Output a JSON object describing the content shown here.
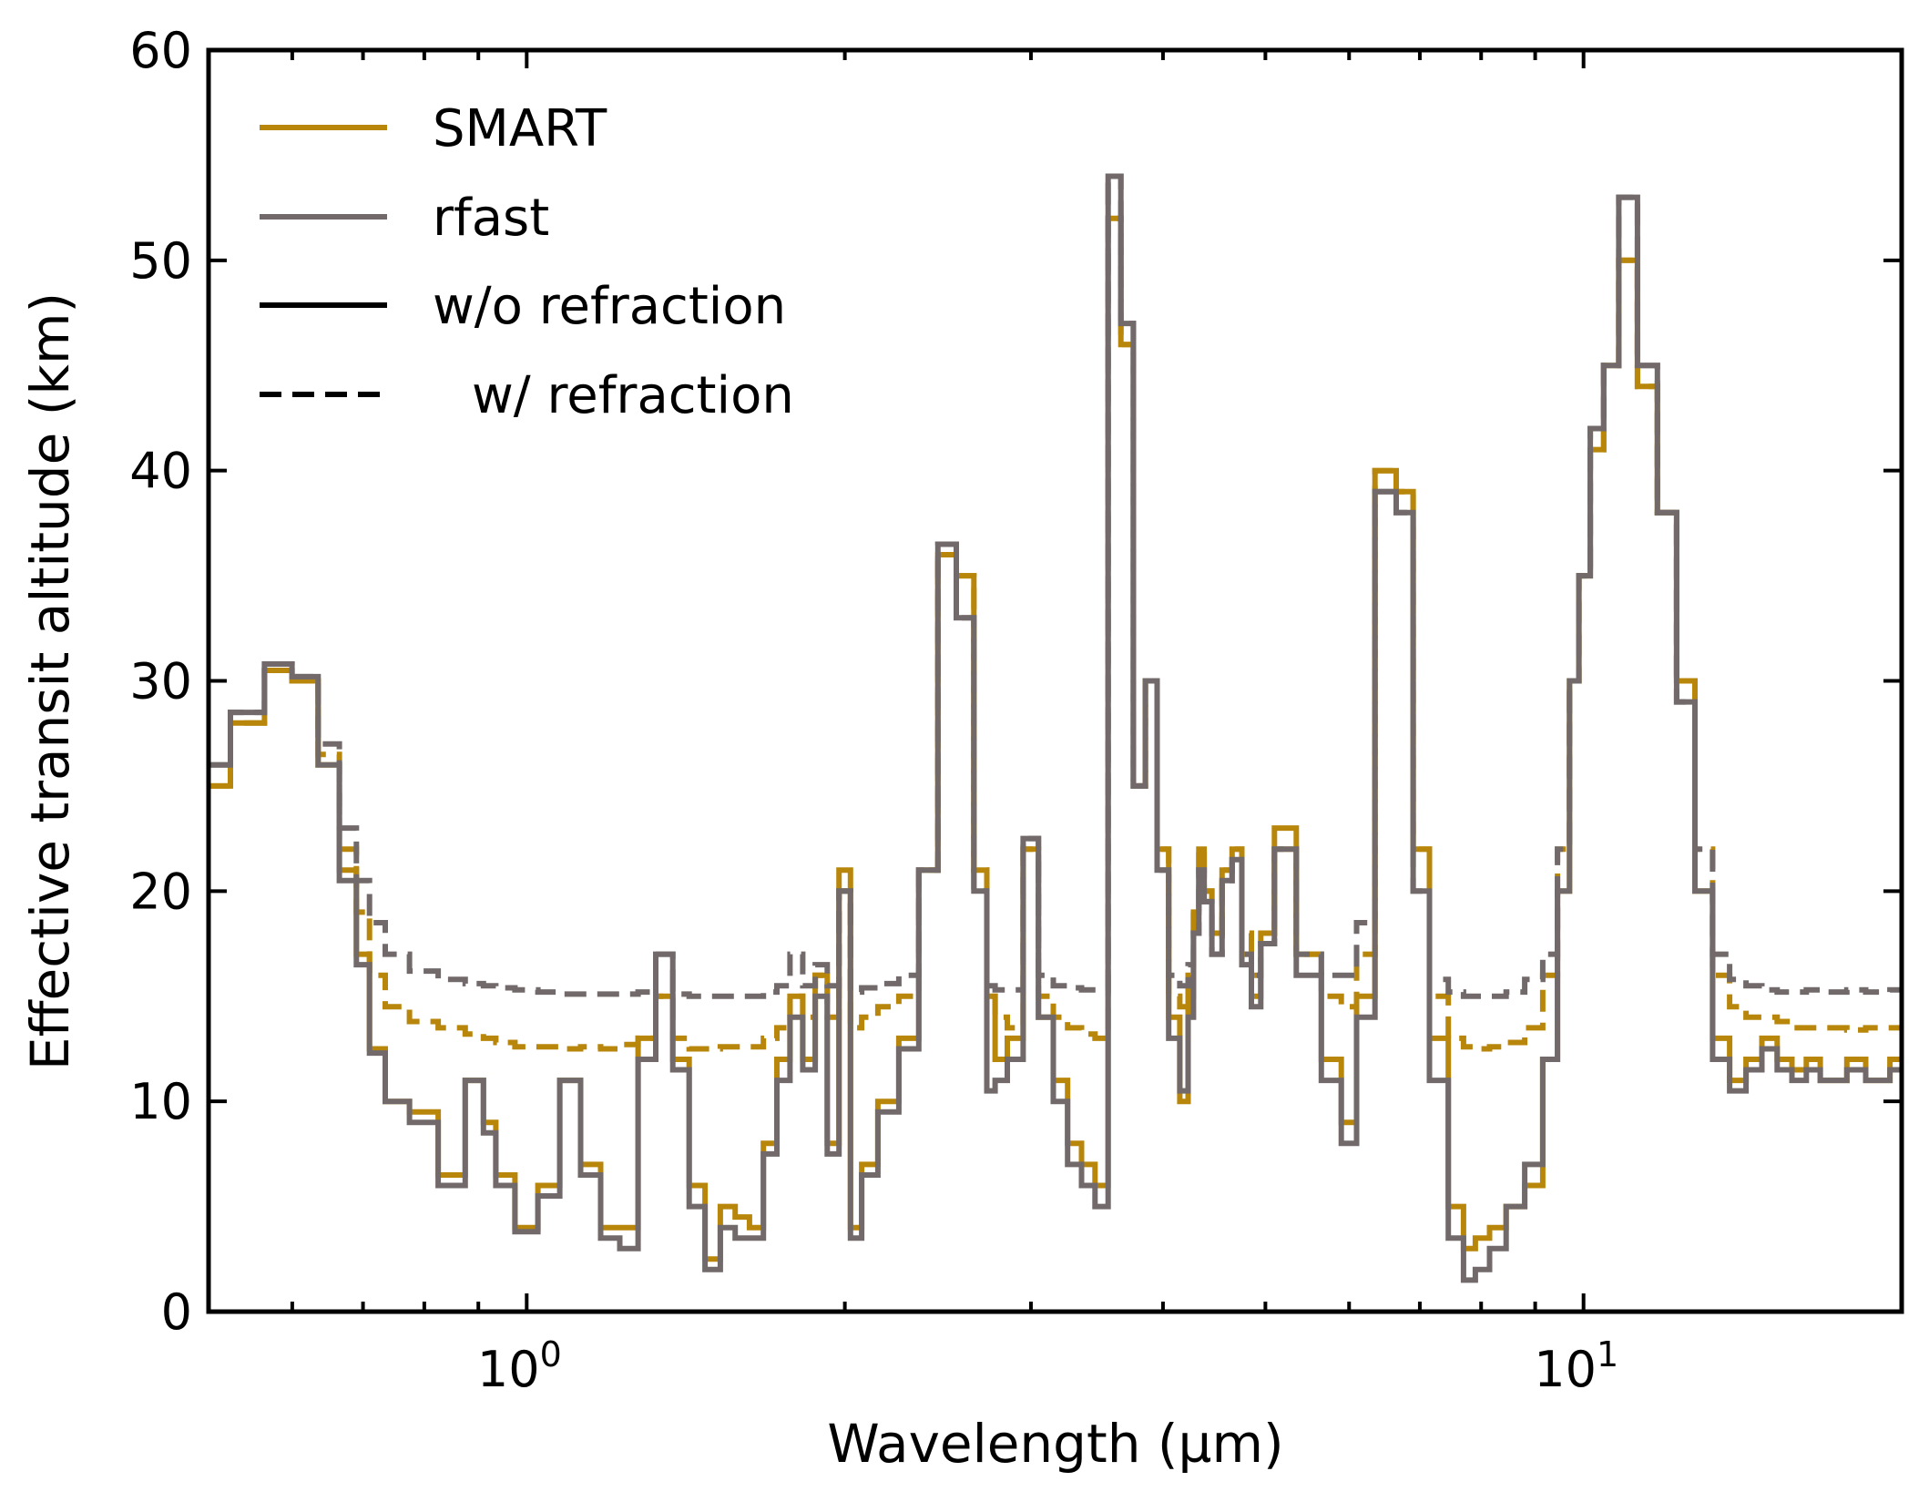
{
  "chart_data": {
    "type": "line",
    "title": "",
    "xlabel": "Wavelength (µm)",
    "ylabel": "Effective transit altitude (km)",
    "xscale": "log",
    "xlim": [
      0.5,
      20
    ],
    "ylim": [
      0,
      60
    ],
    "yticks": [
      0,
      10,
      20,
      30,
      40,
      50,
      60
    ],
    "ytick_labels": [
      "0",
      "10",
      "20",
      "30",
      "40",
      "50",
      "60"
    ],
    "xticks_major": [
      1,
      10
    ],
    "xtick_labels": [
      {
        "base": "10",
        "exp": "0"
      },
      {
        "base": "10",
        "exp": "1"
      }
    ],
    "grid": false,
    "legend": {
      "position": "top-left",
      "entries": [
        {
          "label": "SMART",
          "color": "#b8860b",
          "style": "solid"
        },
        {
          "label": "rfast",
          "color": "#726a6a",
          "style": "solid"
        },
        {
          "label": "w/o refraction",
          "color": "#000000",
          "style": "solid"
        },
        {
          "label": "w/ refraction",
          "color": "#000000",
          "style": "dashed"
        }
      ]
    },
    "colors": {
      "SMART": "#b8860b",
      "rfast": "#726a6a"
    },
    "x": [
      0.5,
      0.55,
      0.58,
      0.62,
      0.65,
      0.68,
      0.7,
      0.72,
      0.75,
      0.8,
      0.85,
      0.9,
      0.92,
      0.95,
      1.0,
      1.05,
      1.1,
      1.15,
      1.2,
      1.25,
      1.3,
      1.35,
      1.4,
      1.45,
      1.5,
      1.55,
      1.6,
      1.65,
      1.7,
      1.75,
      1.8,
      1.85,
      1.9,
      1.95,
      2.0,
      2.05,
      2.1,
      2.2,
      2.3,
      2.4,
      2.5,
      2.6,
      2.7,
      2.75,
      2.8,
      2.9,
      3.0,
      3.1,
      3.2,
      3.3,
      3.4,
      3.5,
      3.6,
      3.7,
      3.8,
      3.9,
      4.0,
      4.1,
      4.2,
      4.25,
      4.3,
      4.35,
      4.4,
      4.5,
      4.6,
      4.7,
      4.8,
      4.9,
      5.0,
      5.2,
      5.5,
      5.8,
      6.0,
      6.2,
      6.5,
      6.8,
      7.0,
      7.3,
      7.6,
      7.8,
      8.0,
      8.3,
      8.6,
      9.0,
      9.3,
      9.6,
      9.8,
      10.0,
      10.3,
      10.6,
      11.0,
      11.5,
      12.0,
      12.5,
      13.0,
      13.5,
      14.0,
      14.5,
      15.0,
      15.5,
      16.0,
      16.5,
      17.0,
      17.5,
      18.0,
      19.0,
      20.0
    ],
    "series": [
      {
        "name": "SMART w/o refraction",
        "model": "SMART",
        "refraction": false,
        "values": [
          25,
          28,
          30.5,
          30,
          26,
          21,
          17,
          12.5,
          10,
          9.5,
          6.5,
          11,
          9,
          6.5,
          4,
          6,
          11,
          7,
          4,
          4,
          13,
          15,
          12,
          6,
          2.5,
          5,
          4.5,
          4,
          8,
          12,
          15,
          12,
          16,
          8,
          21,
          4,
          7,
          10,
          13,
          21,
          36,
          35,
          21,
          15,
          12,
          13,
          22,
          14,
          11,
          8,
          7,
          6,
          52,
          46,
          25,
          30,
          22,
          14,
          10,
          15,
          19,
          22,
          20,
          18,
          21,
          22,
          17,
          15,
          18,
          23,
          17,
          12,
          9,
          15,
          40,
          39,
          22,
          13,
          5,
          3,
          3.5,
          4,
          5,
          6,
          12,
          20,
          30,
          35,
          41,
          45,
          50,
          44,
          38,
          30,
          20,
          13,
          11,
          12,
          13,
          12,
          11.5,
          12,
          11,
          11,
          12,
          11,
          12
        ]
      },
      {
        "name": "SMART w/ refraction",
        "model": "SMART",
        "refraction": true,
        "values": [
          25,
          28,
          30.5,
          30,
          26.5,
          22,
          19,
          16,
          14.5,
          13.8,
          13.5,
          13.2,
          13,
          12.8,
          12.6,
          12.6,
          12.5,
          12.6,
          12.5,
          12.7,
          13,
          15,
          13,
          12.5,
          12.5,
          12.6,
          12.6,
          12.6,
          13,
          13.5,
          15,
          14,
          16,
          14,
          20,
          13.5,
          14,
          14.5,
          15,
          21,
          36,
          35,
          21,
          15,
          14,
          13.5,
          22,
          15,
          14,
          13.5,
          13.2,
          13,
          52,
          46,
          25,
          30,
          22,
          15,
          14.5,
          16,
          19,
          22,
          20,
          18,
          21,
          22,
          18,
          16,
          18,
          22,
          17,
          15,
          14.5,
          17,
          40,
          39,
          22,
          15,
          13,
          12.6,
          12.5,
          12.6,
          12.8,
          13.5,
          16,
          22,
          30,
          35,
          41,
          45,
          50,
          44,
          38,
          30,
          22,
          16,
          14.5,
          14,
          14,
          13.8,
          13.5,
          13.5,
          13.5,
          13.5,
          13.4,
          13.5,
          13.5
        ]
      },
      {
        "name": "rfast w/o refraction",
        "model": "rfast",
        "refraction": false,
        "values": [
          26,
          28.5,
          30.8,
          30.2,
          26,
          20.5,
          16.5,
          12.3,
          10,
          9,
          6,
          11,
          8.5,
          6,
          3.8,
          5.5,
          11,
          6.5,
          3.5,
          3,
          12,
          17,
          11.5,
          5,
          2,
          4,
          3.5,
          3.5,
          7.5,
          11,
          14,
          11.5,
          15,
          7.5,
          20,
          3.5,
          6.5,
          9.5,
          12.5,
          21,
          36.5,
          33,
          20,
          10.5,
          11,
          12,
          22.5,
          14,
          10,
          7,
          6,
          5,
          54,
          47,
          25,
          30,
          21,
          13,
          10.5,
          14,
          18,
          21,
          19.5,
          17,
          20.5,
          21.5,
          16.5,
          14.5,
          17.5,
          22,
          16,
          11,
          8,
          14,
          39,
          38,
          20,
          11,
          3.5,
          1.5,
          2,
          3,
          5,
          7,
          12,
          20,
          30,
          35,
          42,
          45,
          53,
          45,
          38,
          29,
          20,
          12,
          10.5,
          11.5,
          12.5,
          11.5,
          11,
          11.5,
          11,
          11,
          11.5,
          11,
          11.5
        ]
      },
      {
        "name": "rfast w/ refraction",
        "model": "rfast",
        "refraction": true,
        "values": [
          26,
          28.5,
          30.8,
          30.2,
          27,
          23,
          20.5,
          18.5,
          17,
          16.2,
          15.8,
          15.6,
          15.5,
          15.4,
          15.3,
          15.2,
          15.1,
          15.1,
          15.1,
          15.1,
          15.2,
          17,
          15.1,
          15,
          15,
          15,
          15,
          15,
          15.2,
          15.5,
          17,
          15.5,
          16.5,
          15.5,
          20,
          15.2,
          15.4,
          15.6,
          16,
          21,
          36.5,
          33,
          20,
          15.5,
          15.3,
          15.3,
          22.5,
          16,
          15.5,
          15.4,
          15.3,
          15.3,
          54,
          47,
          25,
          30,
          21,
          16,
          15.5,
          16.5,
          18,
          21,
          19.5,
          17,
          20.5,
          21.5,
          17,
          16,
          17.5,
          22,
          17,
          16,
          16,
          18.5,
          39,
          38,
          20,
          15.8,
          15.2,
          15,
          15,
          15,
          15.2,
          15.8,
          17,
          22,
          30,
          35,
          42,
          45,
          53,
          45,
          38,
          29,
          22,
          17,
          15.8,
          15.5,
          15.3,
          15.2,
          15.2,
          15.3,
          15.2,
          15.2,
          15.3,
          15.2,
          15.3
        ]
      }
    ]
  }
}
